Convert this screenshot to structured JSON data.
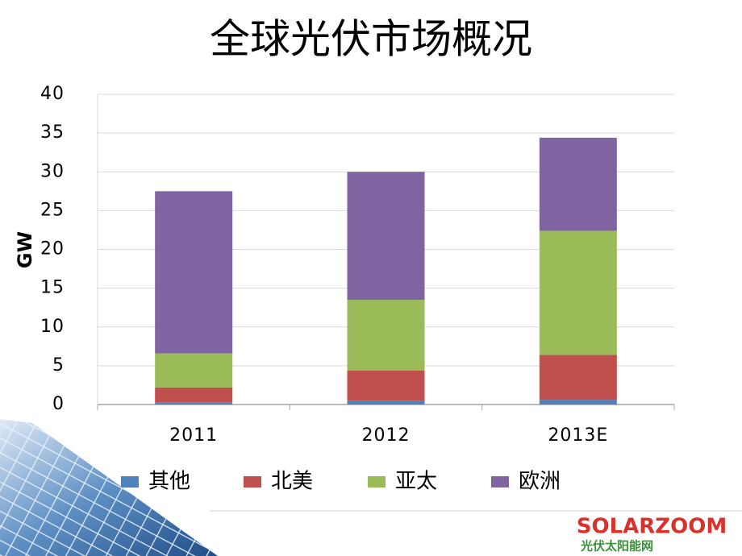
{
  "chart_data": {
    "type": "stacked_bar",
    "title": "全球光伏市场概况",
    "y_label": "GW",
    "categories": [
      "2011",
      "2012",
      "2013E"
    ],
    "series": [
      {
        "name": "其他",
        "color": "#4f81bd",
        "values": [
          0.3,
          0.5,
          0.6
        ]
      },
      {
        "name": "北美",
        "color": "#c0504d",
        "values": [
          1.9,
          3.9,
          5.8
        ]
      },
      {
        "name": "亚太",
        "color": "#9bbb59",
        "values": [
          4.4,
          9.1,
          16.0
        ]
      },
      {
        "name": "欧洲",
        "color": "#8064a2",
        "values": [
          20.9,
          16.5,
          12.0
        ]
      }
    ],
    "ylim": [
      0,
      40
    ],
    "yticks": [
      0,
      5,
      10,
      15,
      20,
      25,
      30,
      35,
      40
    ],
    "grid": true,
    "legend": "bottom"
  },
  "branding": {
    "logo": "SOLARZOOM",
    "tagline": "光伏太阳能网"
  }
}
